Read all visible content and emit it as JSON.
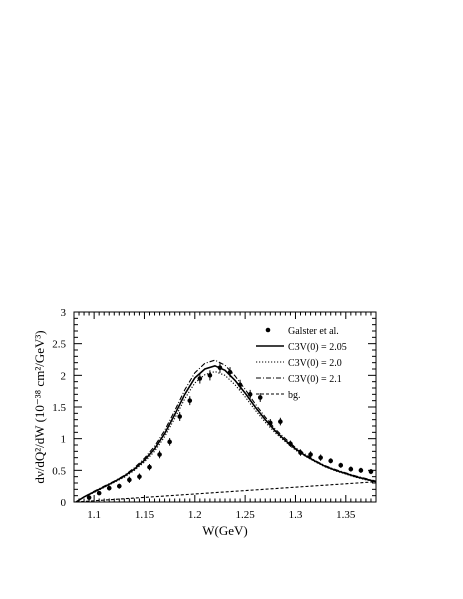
{
  "chart_data": {
    "type": "scatter",
    "title": "",
    "xlabel": "W(GeV)",
    "ylabel": "dν/dQ²/dW (10⁻³⁸ cm²/GeV³)",
    "xlim": [
      1.08,
      1.38
    ],
    "ylim": [
      0,
      3
    ],
    "x_ticks": [
      "1.1",
      "1.15",
      "1.2",
      "1.25",
      "1.3",
      "1.35"
    ],
    "y_ticks": [
      "0",
      "0.5",
      "1",
      "1.5",
      "2",
      "2.5",
      "3"
    ],
    "grid": false,
    "legend_position": "top-right",
    "legend": [
      {
        "label": "Galster et al.",
        "style": "point"
      },
      {
        "label": "C3V(0) = 2.05",
        "style": "solid"
      },
      {
        "label": "C3V(0) = 2.0",
        "style": "dotted"
      },
      {
        "label": "C3V(0) = 2.1",
        "style": "dashdot"
      },
      {
        "label": "bg.",
        "style": "dashed"
      }
    ],
    "series": [
      {
        "style": "points",
        "x": [
          1.095,
          1.105,
          1.115,
          1.125,
          1.135,
          1.145,
          1.155,
          1.165,
          1.175,
          1.185,
          1.195,
          1.205,
          1.215,
          1.225,
          1.235,
          1.245,
          1.255,
          1.265,
          1.275,
          1.285,
          1.295,
          1.305,
          1.315,
          1.325,
          1.335,
          1.345,
          1.355,
          1.365,
          1.375
        ],
        "y": [
          0.07,
          0.14,
          0.22,
          0.25,
          0.35,
          0.4,
          0.55,
          0.75,
          0.95,
          1.35,
          1.6,
          1.95,
          2.0,
          2.12,
          2.05,
          1.85,
          1.7,
          1.65,
          1.25,
          1.27,
          0.92,
          0.78,
          0.75,
          0.7,
          0.65,
          0.58,
          0.52,
          0.5,
          0.48
        ],
        "yerr": [
          0.03,
          0.03,
          0.04,
          0.04,
          0.05,
          0.05,
          0.05,
          0.06,
          0.06,
          0.07,
          0.07,
          0.08,
          0.08,
          0.08,
          0.08,
          0.08,
          0.07,
          0.07,
          0.06,
          0.06,
          0.05,
          0.05,
          0.05,
          0.05,
          0.04,
          0.04,
          0.04,
          0.04,
          0.04
        ]
      },
      {
        "style": "solid",
        "x": [
          1.082,
          1.09,
          1.1,
          1.11,
          1.12,
          1.13,
          1.14,
          1.15,
          1.16,
          1.17,
          1.18,
          1.19,
          1.2,
          1.21,
          1.22,
          1.23,
          1.24,
          1.25,
          1.26,
          1.27,
          1.28,
          1.29,
          1.3,
          1.31,
          1.32,
          1.33,
          1.34,
          1.35,
          1.36,
          1.37,
          1.38
        ],
        "y": [
          0.0,
          0.08,
          0.16,
          0.24,
          0.32,
          0.41,
          0.52,
          0.66,
          0.84,
          1.08,
          1.38,
          1.7,
          1.96,
          2.1,
          2.15,
          2.08,
          1.92,
          1.72,
          1.5,
          1.3,
          1.12,
          0.97,
          0.84,
          0.73,
          0.64,
          0.56,
          0.5,
          0.45,
          0.4,
          0.36,
          0.32
        ]
      },
      {
        "style": "dotted",
        "x": [
          1.082,
          1.09,
          1.1,
          1.11,
          1.12,
          1.13,
          1.14,
          1.15,
          1.16,
          1.17,
          1.18,
          1.19,
          1.2,
          1.21,
          1.22,
          1.23,
          1.24,
          1.25,
          1.26,
          1.27,
          1.28,
          1.29,
          1.3,
          1.31,
          1.32,
          1.33,
          1.34,
          1.35,
          1.36,
          1.37,
          1.38
        ],
        "y": [
          0.0,
          0.08,
          0.15,
          0.23,
          0.31,
          0.39,
          0.5,
          0.63,
          0.8,
          1.03,
          1.32,
          1.63,
          1.88,
          2.01,
          2.06,
          2.0,
          1.85,
          1.66,
          1.45,
          1.26,
          1.09,
          0.95,
          0.82,
          0.72,
          0.63,
          0.55,
          0.49,
          0.44,
          0.39,
          0.35,
          0.32
        ]
      },
      {
        "style": "dashdot",
        "x": [
          1.082,
          1.09,
          1.1,
          1.11,
          1.12,
          1.13,
          1.14,
          1.15,
          1.16,
          1.17,
          1.18,
          1.19,
          1.2,
          1.21,
          1.22,
          1.23,
          1.24,
          1.25,
          1.26,
          1.27,
          1.28,
          1.29,
          1.3,
          1.31,
          1.32,
          1.33,
          1.34,
          1.35,
          1.36,
          1.37,
          1.38
        ],
        "y": [
          0.0,
          0.08,
          0.17,
          0.25,
          0.33,
          0.42,
          0.54,
          0.69,
          0.88,
          1.13,
          1.44,
          1.77,
          2.04,
          2.19,
          2.24,
          2.16,
          1.99,
          1.78,
          1.55,
          1.34,
          1.15,
          1.0,
          0.86,
          0.75,
          0.65,
          0.57,
          0.51,
          0.46,
          0.41,
          0.37,
          0.33
        ]
      },
      {
        "style": "dashed",
        "x": [
          1.082,
          1.38
        ],
        "y": [
          0.0,
          0.32
        ]
      }
    ]
  }
}
